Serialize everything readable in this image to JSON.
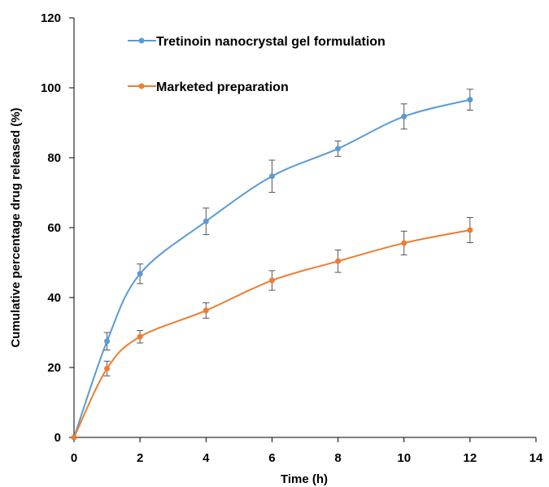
{
  "chart_data": {
    "type": "line",
    "xlabel": "Time (h)",
    "ylabel": "Cumulative percentage drug released (%)",
    "xlim": [
      0,
      14
    ],
    "ylim": [
      0,
      120
    ],
    "xticks": [
      0,
      2,
      4,
      6,
      8,
      10,
      12,
      14
    ],
    "yticks": [
      0,
      20,
      40,
      60,
      80,
      100,
      120
    ],
    "grid": false,
    "legend_position": "top-left",
    "series": [
      {
        "name": "Tretinoin nanocrystal gel formulation",
        "color": "#5b9bd5",
        "x": [
          0,
          1,
          2,
          4,
          6,
          8,
          10,
          12
        ],
        "y": [
          0,
          27.5,
          46.8,
          61.8,
          74.7,
          82.6,
          91.8,
          96.6
        ],
        "error": [
          0,
          2.5,
          2.8,
          3.8,
          4.6,
          2.2,
          3.6,
          3.0
        ]
      },
      {
        "name": "Marketed preparation",
        "color": "#ed7d31",
        "x": [
          0,
          1,
          2,
          4,
          6,
          8,
          10,
          12
        ],
        "y": [
          0,
          19.7,
          28.8,
          36.3,
          44.9,
          50.4,
          55.6,
          59.3
        ],
        "error": [
          0,
          2.1,
          1.8,
          2.2,
          2.8,
          3.2,
          3.4,
          3.6
        ]
      }
    ]
  }
}
